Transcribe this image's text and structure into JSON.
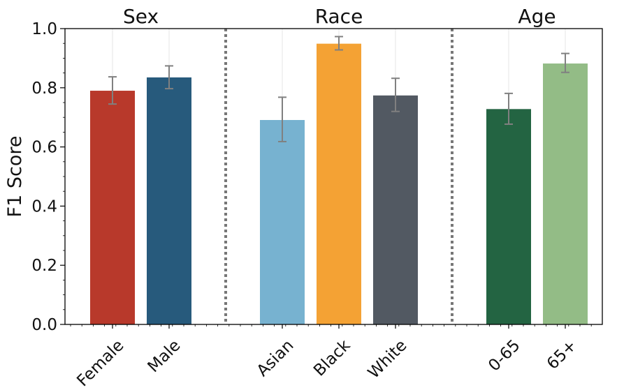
{
  "chart_data": {
    "type": "bar",
    "ylabel": "F1 Score",
    "ylim": [
      0,
      1.0
    ],
    "yticks": [
      0.0,
      0.2,
      0.4,
      0.6,
      0.8,
      1.0
    ],
    "ytick_labels": [
      "0.0",
      "0.2",
      "0.4",
      "0.6",
      "0.8",
      "1.0"
    ],
    "grid": "vertical light lines at category positions",
    "groups": [
      {
        "title": "Sex",
        "bars": [
          {
            "category": "Female",
            "value": 0.79,
            "err_low": 0.745,
            "err_high": 0.837,
            "color": "#b8392b"
          },
          {
            "category": "Male",
            "value": 0.835,
            "err_low": 0.797,
            "err_high": 0.874,
            "color": "#275a7c"
          }
        ]
      },
      {
        "title": "Race",
        "bars": [
          {
            "category": "Asian",
            "value": 0.691,
            "err_low": 0.618,
            "err_high": 0.768,
            "color": "#77b2d0"
          },
          {
            "category": "Black",
            "value": 0.949,
            "err_low": 0.928,
            "err_high": 0.973,
            "color": "#f4a234"
          },
          {
            "category": "White",
            "value": 0.774,
            "err_low": 0.72,
            "err_high": 0.832,
            "color": "#525962"
          }
        ]
      },
      {
        "title": "Age",
        "bars": [
          {
            "category": "0-65",
            "value": 0.728,
            "err_low": 0.677,
            "err_high": 0.781,
            "color": "#236442"
          },
          {
            "category": "65+",
            "value": 0.882,
            "err_low": 0.852,
            "err_high": 0.916,
            "color": "#93bc86"
          }
        ]
      }
    ]
  }
}
